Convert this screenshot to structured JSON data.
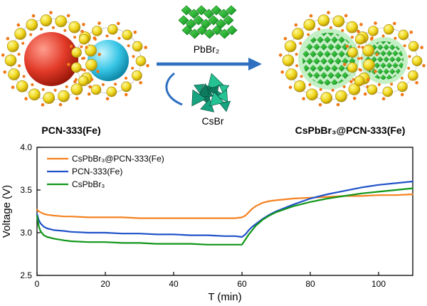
{
  "scheme": {
    "left_label": "PCN-333(Fe)",
    "right_label": "CsPbBr₃@PCN-333(Fe)",
    "reagent_top": "PbBr₂",
    "reagent_bottom": "CsBr",
    "arrow_color": "#2e6fc0",
    "colors": {
      "mof_sphere_red": "#e23a28",
      "mof_sphere_cyan": "#38c6e6",
      "linker_yellow": "#f0d81c",
      "cluster_orange": "#f07818",
      "nanocrystal_green": "#22b14c",
      "csbr_teal": "#18a380"
    }
  },
  "chart_data": {
    "type": "line",
    "title": "",
    "xlabel": "T (min)",
    "ylabel": "Voltage (V)",
    "xlim": [
      0,
      110
    ],
    "ylim": [
      2.5,
      4.0
    ],
    "xticks": [
      0,
      20,
      40,
      60,
      80,
      100
    ],
    "yticks": [
      2.5,
      3.0,
      3.5,
      4.0
    ],
    "grid": false,
    "legend_position": "top-left",
    "x": [
      0,
      0.5,
      1,
      2,
      3,
      5,
      8,
      10,
      15,
      20,
      25,
      30,
      35,
      40,
      45,
      50,
      55,
      58,
      60,
      61,
      62,
      63,
      64,
      66,
      68,
      70,
      75,
      80,
      85,
      90,
      95,
      100,
      105,
      110
    ],
    "series": [
      {
        "name": "CsPbBr₃@PCN-333(Fe)",
        "color": "#f58220",
        "values": [
          3.27,
          3.25,
          3.24,
          3.22,
          3.21,
          3.2,
          3.19,
          3.19,
          3.18,
          3.18,
          3.18,
          3.17,
          3.17,
          3.17,
          3.17,
          3.17,
          3.17,
          3.17,
          3.18,
          3.2,
          3.24,
          3.28,
          3.31,
          3.35,
          3.37,
          3.38,
          3.4,
          3.41,
          3.42,
          3.43,
          3.43,
          3.44,
          3.44,
          3.45
        ]
      },
      {
        "name": "PCN-333(Fe)",
        "color": "#2052c8",
        "values": [
          3.22,
          3.15,
          3.11,
          3.07,
          3.05,
          3.03,
          3.02,
          3.01,
          3.0,
          3.0,
          2.99,
          2.99,
          2.98,
          2.98,
          2.97,
          2.97,
          2.96,
          2.96,
          2.95,
          2.98,
          3.03,
          3.07,
          3.1,
          3.16,
          3.21,
          3.25,
          3.33,
          3.4,
          3.45,
          3.49,
          3.53,
          3.56,
          3.58,
          3.6
        ]
      },
      {
        "name": "CsPbBr₃",
        "color": "#109618",
        "values": [
          3.2,
          3.08,
          3.02,
          2.97,
          2.95,
          2.93,
          2.91,
          2.9,
          2.89,
          2.89,
          2.88,
          2.88,
          2.87,
          2.87,
          2.87,
          2.86,
          2.86,
          2.86,
          2.86,
          2.92,
          2.98,
          3.03,
          3.08,
          3.15,
          3.2,
          3.24,
          3.31,
          3.36,
          3.4,
          3.43,
          3.46,
          3.48,
          3.5,
          3.52
        ]
      }
    ]
  }
}
